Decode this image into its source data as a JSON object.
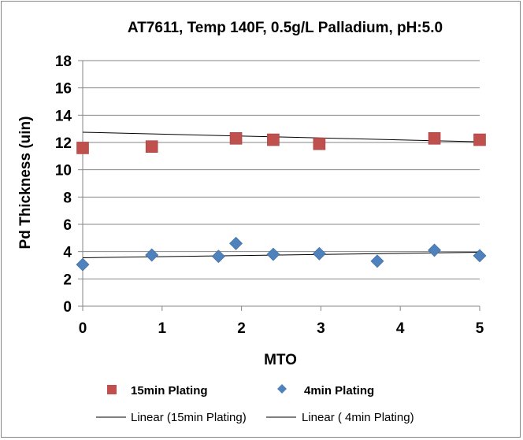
{
  "chart_data": {
    "type": "scatter",
    "title": "AT7611, Temp 140F, 0.5g/L Palladium,  pH:5.0",
    "xlabel": "MTO",
    "ylabel": "Pd Thickness (uin)",
    "xlim": [
      0,
      5
    ],
    "ylim": [
      0,
      18
    ],
    "x_ticks": [
      0,
      1,
      2,
      3,
      4,
      5
    ],
    "y_ticks": [
      0,
      2,
      4,
      6,
      8,
      10,
      12,
      14,
      16,
      18
    ],
    "grid": "horizontal",
    "legend_position": "bottom",
    "series": [
      {
        "name": "15min Plating",
        "marker": "square",
        "color": "#C0504D",
        "x": [
          0.0,
          0.87,
          1.93,
          2.4,
          2.98,
          4.43,
          5.0
        ],
        "y": [
          11.6,
          11.7,
          12.3,
          12.2,
          11.9,
          12.3,
          12.2
        ]
      },
      {
        "name": "4min Plating",
        "marker": "diamond",
        "color": "#4F81BD",
        "x": [
          0.0,
          0.87,
          1.71,
          1.93,
          2.4,
          2.98,
          3.71,
          4.43,
          5.0
        ],
        "y": [
          3.05,
          3.75,
          3.65,
          4.6,
          3.8,
          3.85,
          3.3,
          4.1,
          3.7
        ]
      }
    ],
    "trendlines": [
      {
        "name": "Linear (15min Plating)",
        "type": "linear",
        "y_at_x_min": 12.75,
        "y_at_x_max": 12.05
      },
      {
        "name": "Linear ( 4min Plating)",
        "type": "linear",
        "y_at_x_min": 3.55,
        "y_at_x_max": 3.95
      }
    ]
  }
}
